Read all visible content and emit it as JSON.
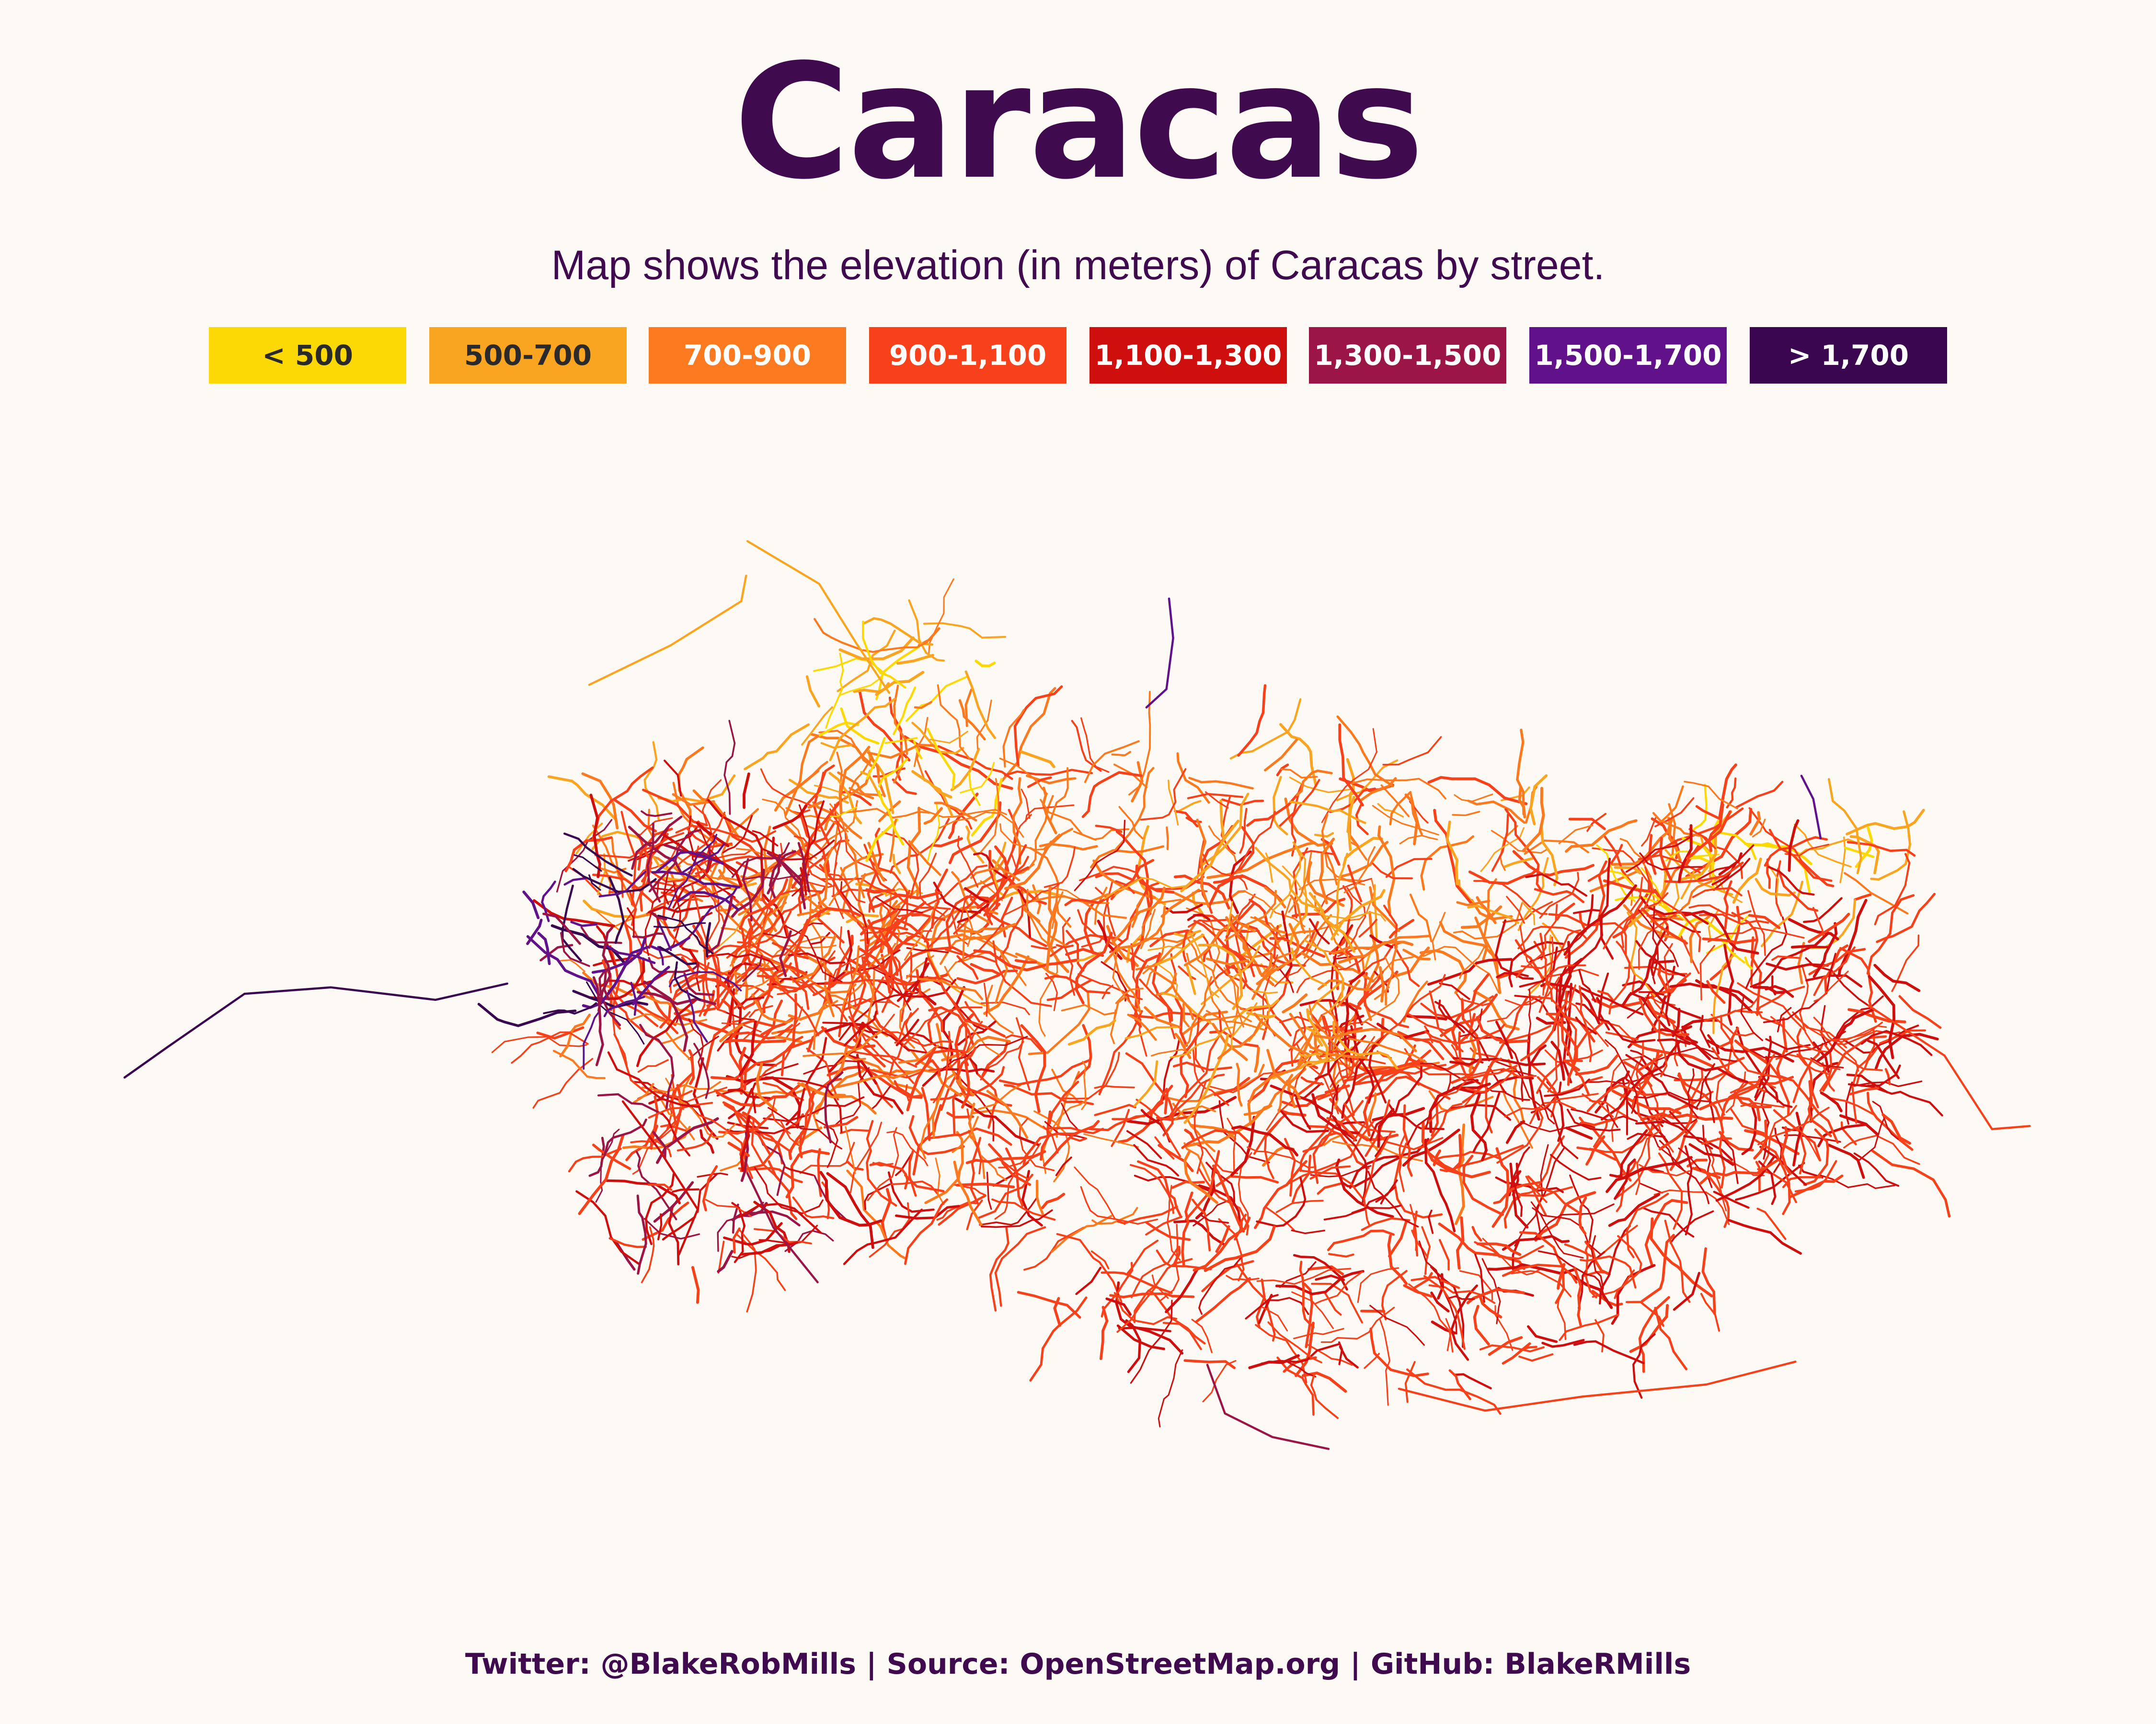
{
  "title": "Caracas",
  "subtitle": "Map shows the elevation (in meters) of Caracas by street.",
  "legend": [
    {
      "label": "< 500",
      "color": "#fcd805",
      "text_color": "#2a2a2a"
    },
    {
      "label": "500-700",
      "color": "#faa522",
      "text_color": "#2a2a2a"
    },
    {
      "label": "700-900",
      "color": "#fb7a1f",
      "text_color": "#ffffff"
    },
    {
      "label": "900-1,100",
      "color": "#f6411b",
      "text_color": "#ffffff"
    },
    {
      "label": "1,100-1,300",
      "color": "#cf0e0e",
      "text_color": "#ffffff"
    },
    {
      "label": "1,300-1,500",
      "color": "#9b1547",
      "text_color": "#ffffff"
    },
    {
      "label": "1,500-1,700",
      "color": "#61128a",
      "text_color": "#ffffff"
    },
    {
      "label": "> 1,700",
      "color": "#3a0650",
      "text_color": "#ffffff"
    }
  ],
  "footer": "Twitter: @BlakeRobMills | Source: OpenStreetMap.org | GitHub: BlakeRMills"
}
